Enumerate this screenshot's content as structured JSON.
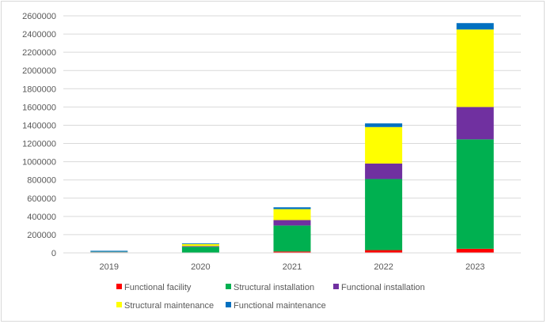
{
  "chart_data": {
    "type": "bar",
    "stacked": true,
    "categories": [
      "2019",
      "2020",
      "2021",
      "2022",
      "2023"
    ],
    "series": [
      {
        "name": "Functional facility",
        "color": "#ff0000",
        "values": [
          1000,
          2000,
          15000,
          30000,
          45000
        ]
      },
      {
        "name": "Structural installation",
        "color": "#00b050",
        "values": [
          5000,
          65000,
          285000,
          780000,
          1200000
        ]
      },
      {
        "name": "Functional installation",
        "color": "#7030a0",
        "values": [
          2000,
          8000,
          60000,
          170000,
          355000
        ]
      },
      {
        "name": "Structural maintenance",
        "color": "#ffff00",
        "values": [
          3000,
          22000,
          120000,
          400000,
          850000
        ]
      },
      {
        "name": "Functional maintenance",
        "color": "#0070c0",
        "values": [
          12000,
          8000,
          20000,
          40000,
          70000
        ]
      }
    ],
    "ylim": [
      0,
      2600000
    ],
    "yticks": [
      0,
      200000,
      400000,
      600000,
      800000,
      1000000,
      1200000,
      1400000,
      1600000,
      1800000,
      2000000,
      2200000,
      2400000,
      2600000
    ],
    "grid": true,
    "legend_position": "bottom",
    "title": "",
    "xlabel": "",
    "ylabel": ""
  }
}
